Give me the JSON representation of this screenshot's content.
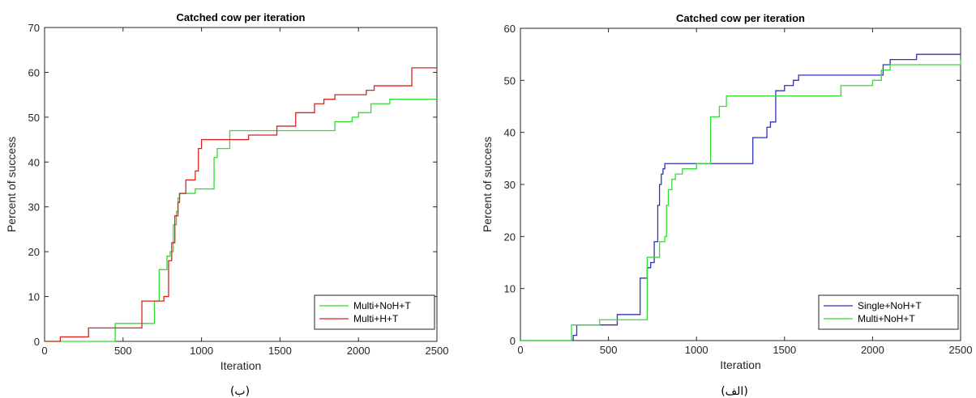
{
  "chart_data": [
    {
      "type": "line",
      "caption": "(ب)",
      "title": "Catched cow per iteration",
      "xlabel": "Iteration",
      "ylabel": "Percent of success",
      "xlim": [
        0,
        2500
      ],
      "ylim": [
        0,
        70
      ],
      "xticks": [
        0,
        500,
        1000,
        1500,
        2000,
        2500
      ],
      "yticks": [
        0,
        10,
        20,
        30,
        40,
        50,
        60,
        70
      ],
      "grid": false,
      "legend_position": "bottom-right",
      "series": [
        {
          "name": "Multi+NoH+T",
          "color": "#33dd33",
          "x": [
            0,
            280,
            450,
            680,
            700,
            730,
            740,
            780,
            800,
            820,
            840,
            850,
            860,
            880,
            930,
            960,
            1000,
            1060,
            1080,
            1100,
            1150,
            1180,
            1200,
            1850,
            1900,
            1960,
            1980,
            2000,
            2060,
            2080,
            2100,
            2200,
            2500
          ],
          "y": [
            0,
            0,
            4,
            4,
            9,
            16,
            16,
            19,
            20,
            26,
            29,
            32,
            33,
            33,
            33,
            34,
            34,
            34,
            41,
            43,
            43,
            47,
            47,
            49,
            49,
            50,
            50,
            51,
            51,
            53,
            53,
            54,
            54
          ]
        },
        {
          "name": "Multi+H+T",
          "color": "#dd2222",
          "x": [
            0,
            100,
            280,
            600,
            620,
            720,
            760,
            790,
            810,
            830,
            850,
            860,
            870,
            900,
            930,
            960,
            980,
            1000,
            1020,
            1080,
            1250,
            1300,
            1400,
            1480,
            1600,
            1650,
            1720,
            1780,
            1800,
            1850,
            2000,
            2050,
            2100,
            2300,
            2320,
            2340,
            2500
          ],
          "y": [
            0,
            1,
            3,
            3,
            9,
            9,
            10,
            18,
            22,
            28,
            31,
            33,
            33,
            36,
            36,
            38,
            43,
            45,
            45,
            45,
            45,
            46,
            46,
            48,
            51,
            51,
            53,
            54,
            54,
            55,
            55,
            56,
            57,
            57,
            57,
            61,
            61
          ]
        }
      ]
    },
    {
      "type": "line",
      "caption": "(الف)",
      "title": "Catched cow per iteration",
      "xlabel": "Iteration",
      "ylabel": "Percent of success",
      "xlim": [
        0,
        2500
      ],
      "ylim": [
        0,
        60
      ],
      "xticks": [
        0,
        500,
        1000,
        1500,
        2000,
        2500
      ],
      "yticks": [
        0,
        10,
        20,
        30,
        40,
        50,
        60
      ],
      "grid": false,
      "legend_position": "bottom-right",
      "series": [
        {
          "name": "Single+NoH+T",
          "color": "#3030c0",
          "x": [
            0,
            280,
            300,
            320,
            550,
            680,
            700,
            720,
            740,
            760,
            780,
            790,
            800,
            810,
            820,
            1000,
            1300,
            1320,
            1400,
            1420,
            1450,
            1500,
            1550,
            1580,
            1700,
            2040,
            2060,
            2100,
            2250,
            2500
          ],
          "y": [
            0,
            0,
            1,
            3,
            5,
            12,
            12,
            14,
            15,
            19,
            26,
            30,
            32,
            33,
            34,
            34,
            34,
            39,
            41,
            42,
            48,
            49,
            50,
            51,
            51,
            51,
            53,
            54,
            55,
            55
          ],
          "step": true
        },
        {
          "name": "Multi+NoH+T",
          "color": "#33dd33",
          "x": [
            0,
            260,
            290,
            450,
            700,
            720,
            770,
            790,
            820,
            830,
            840,
            860,
            880,
            920,
            1000,
            1050,
            1080,
            1130,
            1170,
            1800,
            1820,
            1950,
            2000,
            2050,
            2100,
            2500
          ],
          "y": [
            0,
            0,
            3,
            4,
            4,
            16,
            16,
            19,
            20,
            26,
            29,
            31,
            32,
            33,
            34,
            34,
            43,
            45,
            47,
            47,
            49,
            49,
            50,
            52,
            53,
            54
          ],
          "step": true
        }
      ]
    }
  ]
}
